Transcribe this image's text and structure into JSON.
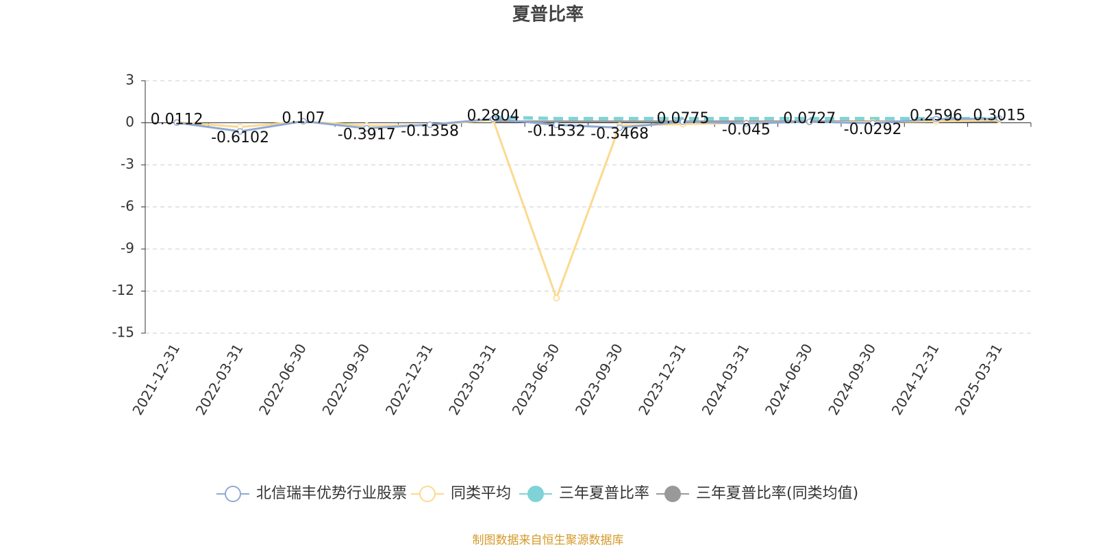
{
  "chart_data": {
    "type": "line",
    "title": "夏普比率",
    "categories": [
      "2021-12-31",
      "2022-03-31",
      "2022-06-30",
      "2022-09-30",
      "2022-12-31",
      "2023-03-31",
      "2023-06-30",
      "2023-09-30",
      "2023-12-31",
      "2024-03-31",
      "2024-06-30",
      "2024-09-30",
      "2024-12-31",
      "2025-03-31"
    ],
    "series": [
      {
        "name": "北信瑞丰优势行业股票",
        "color": "#8fa9d4",
        "values": [
          0.0112,
          -0.6102,
          0.107,
          -0.3917,
          -0.1358,
          0.2804,
          -0.1532,
          -0.3468,
          0.0775,
          -0.045,
          0.0727,
          -0.0292,
          0.2596,
          0.3015
        ]
      },
      {
        "name": "同类平均",
        "color": "#fcd98e",
        "values": [
          0.05,
          -0.3,
          0.1,
          -0.2,
          -0.15,
          0.2,
          -12.5,
          -0.2,
          -0.1,
          0.0,
          0.05,
          0.05,
          0.1,
          0.2
        ]
      },
      {
        "name": "三年夏普比率",
        "color": "#7fd3d6",
        "values": [
          null,
          null,
          null,
          null,
          null,
          0.4,
          0.3,
          0.3,
          0.3,
          0.3,
          0.3,
          0.3,
          0.3,
          0.3
        ]
      },
      {
        "name": "三年夏普比率(同类均值)",
        "color": "#999999",
        "values": [
          null,
          null,
          null,
          null,
          null,
          0.1,
          0.1,
          0.1,
          0.1,
          0.1,
          0.1,
          0.1,
          0.1,
          0.1
        ]
      }
    ],
    "ylim": [
      -15,
      3
    ],
    "yticks": [
      3,
      0,
      -3,
      -6,
      -9,
      -12,
      -15
    ],
    "grid": true,
    "source": "制图数据来自恒生聚源数据库"
  }
}
